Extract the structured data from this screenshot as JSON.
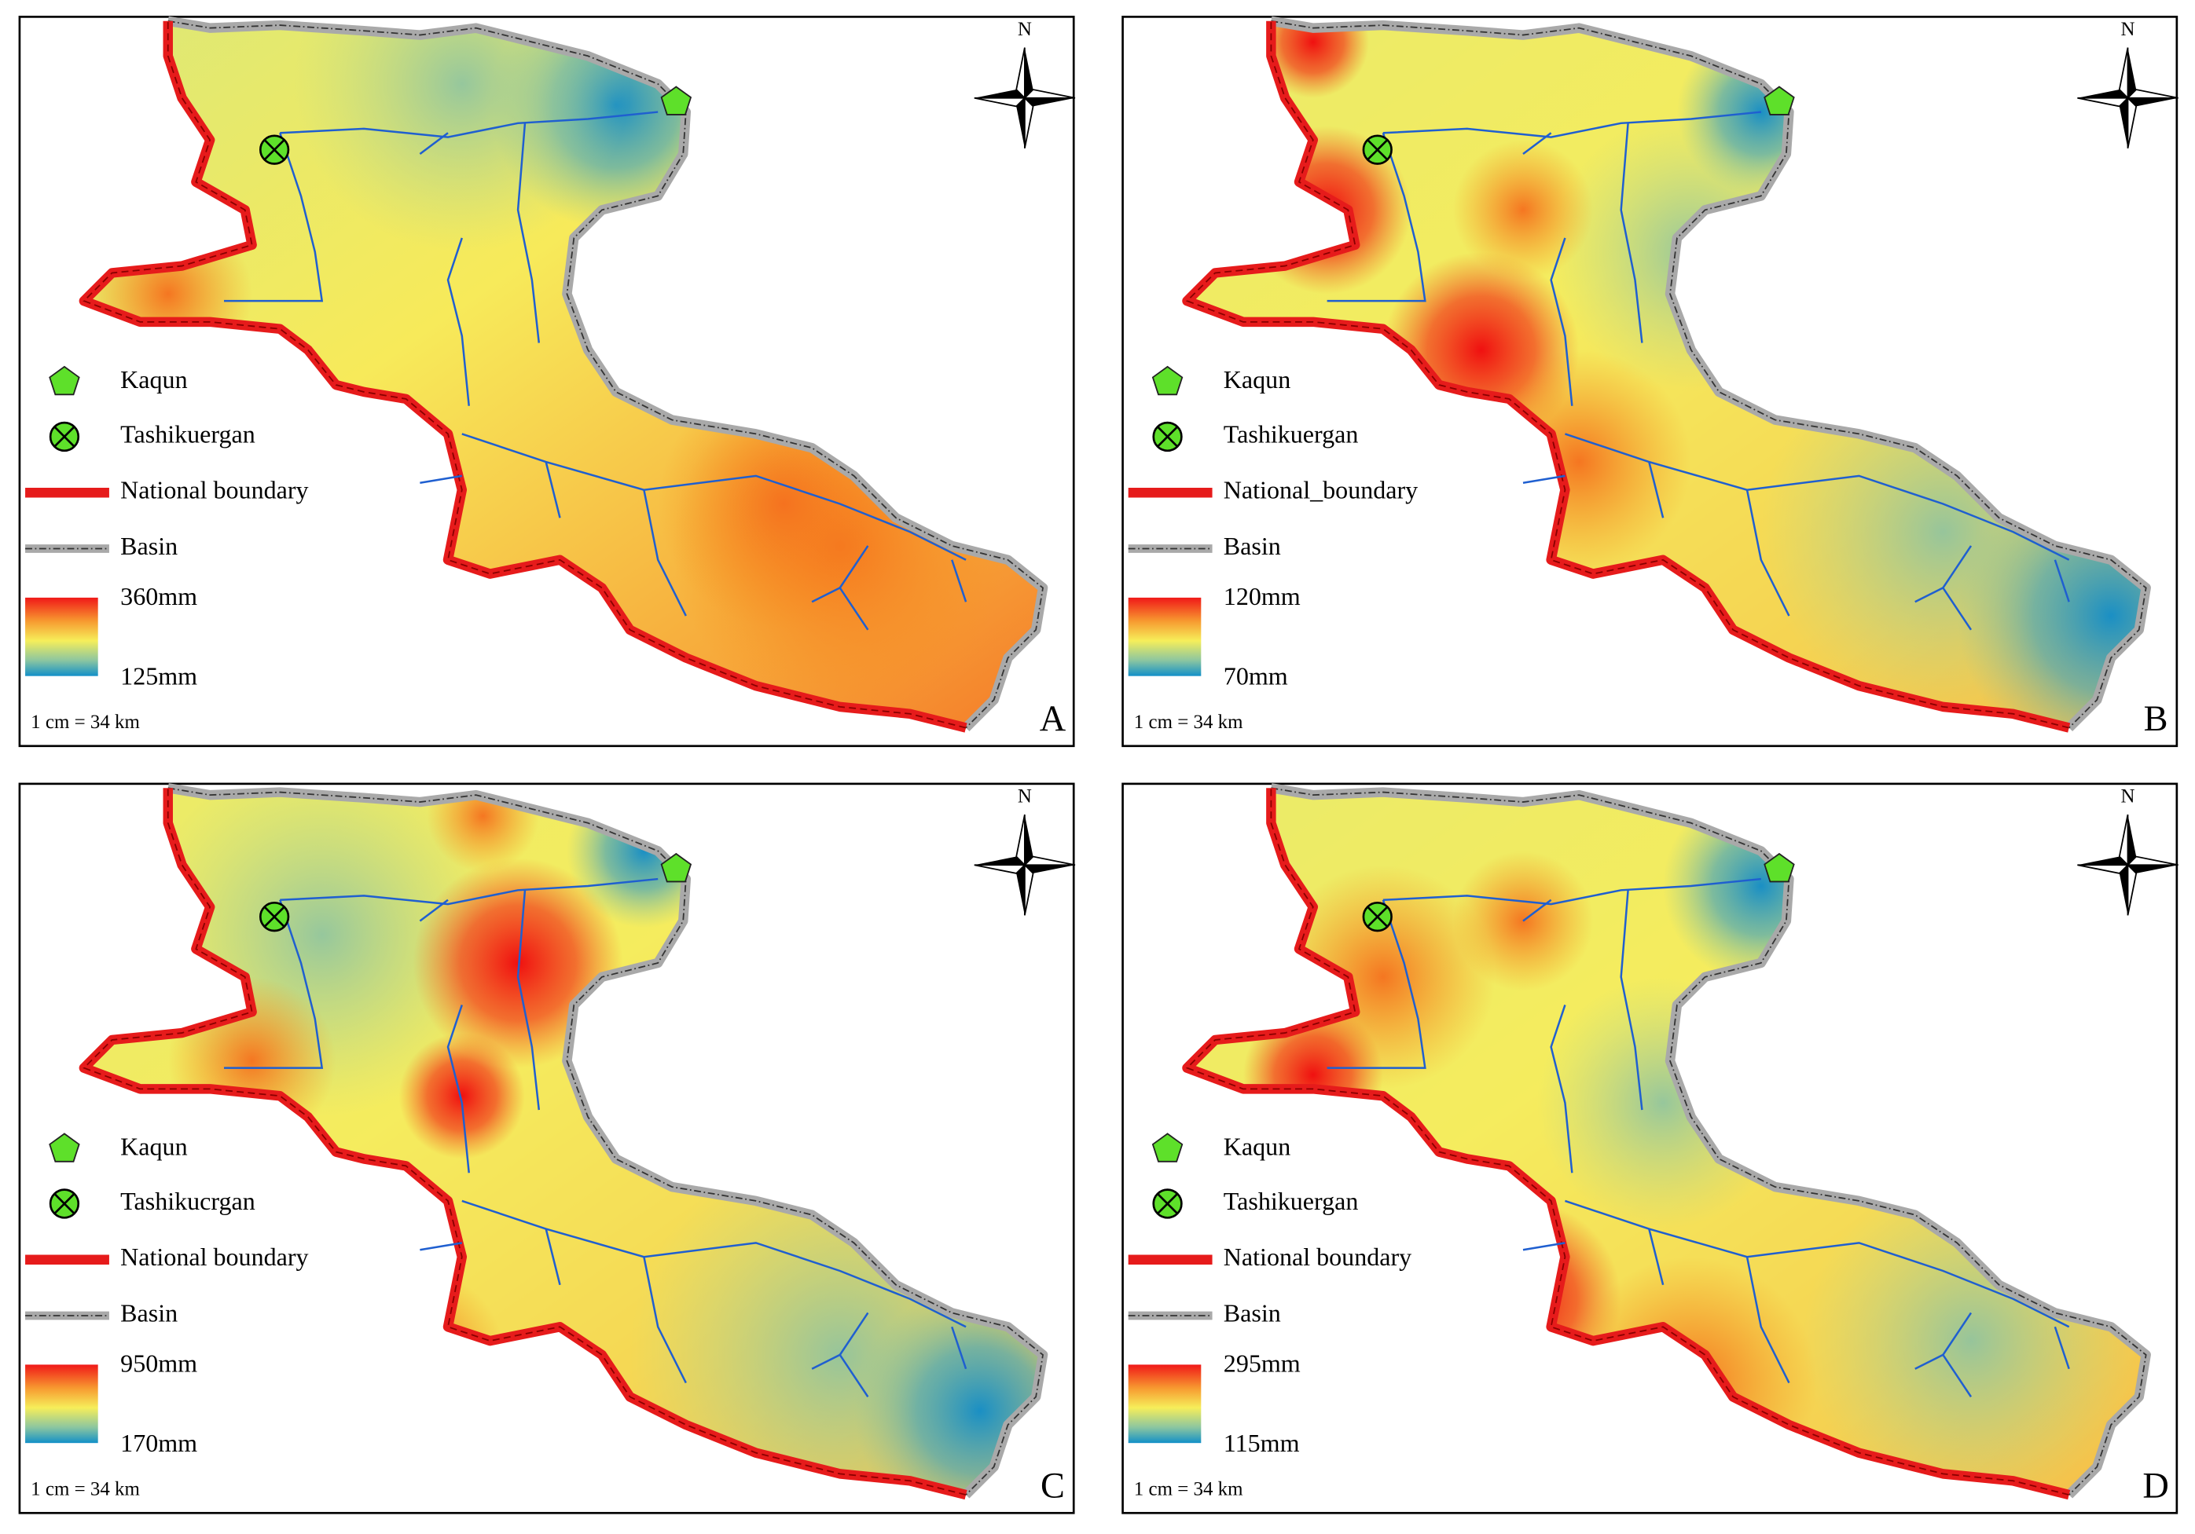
{
  "panels": [
    {
      "letter": "A",
      "north": "N",
      "scale": "1 cm = 34 km",
      "legend": {
        "kaqun": "Kaqun",
        "station": "Tashikuergan",
        "boundary": "National boundary",
        "basin": "Basin",
        "max": "360mm",
        "min": "125mm"
      }
    },
    {
      "letter": "B",
      "north": "N",
      "scale": "1 cm = 34 km",
      "legend": {
        "kaqun": "Kaqun",
        "station": "Tashikuergan",
        "boundary": "National_boundary",
        "basin": "Basin",
        "max": "120mm",
        "min": "70mm"
      }
    },
    {
      "letter": "C",
      "north": "N",
      "scale": "1 cm = 34 km",
      "legend": {
        "kaqun": "Kaqun",
        "station": "Tashikucrgan",
        "boundary": "National boundary",
        "basin": "Basin",
        "max": "950mm",
        "min": "170mm"
      }
    },
    {
      "letter": "D",
      "north": "N",
      "scale": "1 cm = 34 km",
      "legend": {
        "kaqun": "Kaqun",
        "station": "Tashikuergan",
        "boundary": "National boundary",
        "basin": "Basin",
        "max": "295mm",
        "min": "115mm"
      }
    }
  ]
}
